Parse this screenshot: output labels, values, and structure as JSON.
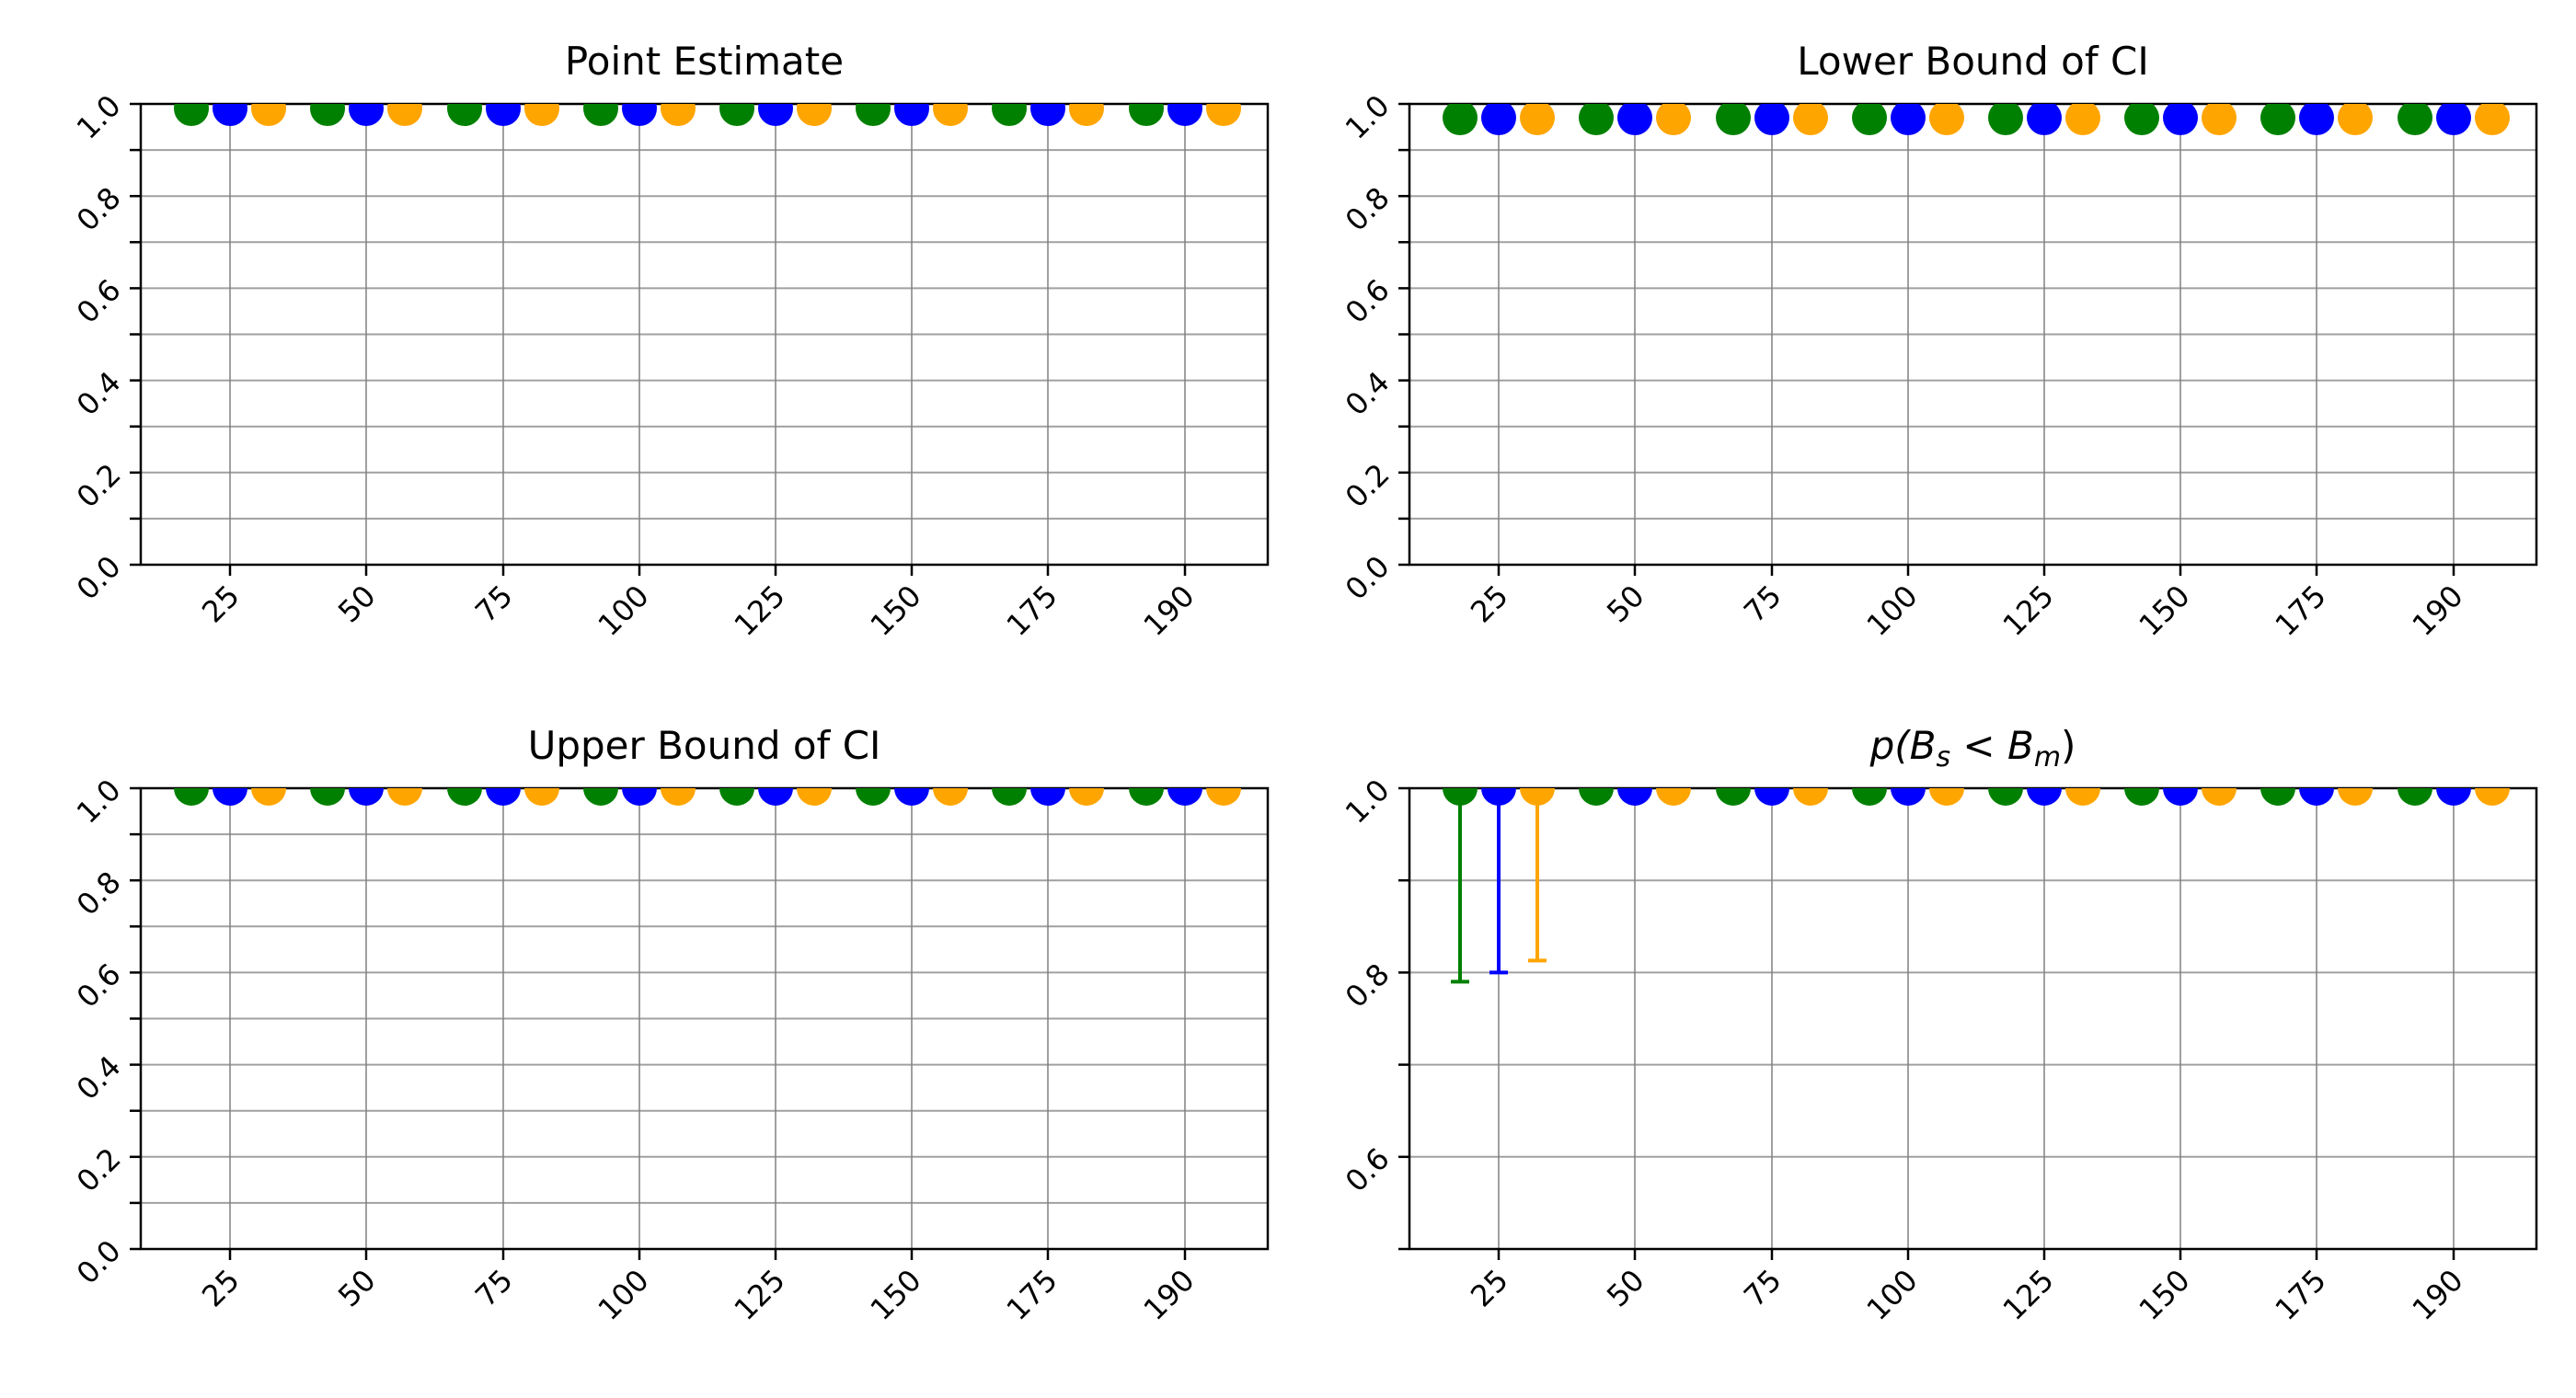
{
  "figure": {
    "colors": [
      "#008000",
      "#0000ff",
      "#ffa500"
    ],
    "grid": true
  },
  "chart_data": [
    {
      "type": "scatter",
      "title": "Point Estimate",
      "categories": [
        "25",
        "50",
        "75",
        "100",
        "125",
        "150",
        "175",
        "190"
      ],
      "ylim": [
        0,
        1
      ],
      "yticks": [
        "0.0",
        "0.2",
        "0.4",
        "0.6",
        "0.8",
        "1.0"
      ],
      "series": [
        {
          "color": "#008000",
          "values": [
            0.99,
            0.99,
            0.99,
            0.99,
            0.99,
            0.99,
            0.99,
            0.99
          ]
        },
        {
          "color": "#0000ff",
          "values": [
            0.99,
            0.99,
            0.99,
            0.99,
            0.99,
            0.99,
            0.99,
            0.99
          ]
        },
        {
          "color": "#ffa500",
          "values": [
            0.99,
            0.99,
            0.99,
            0.99,
            0.99,
            0.99,
            0.99,
            0.99
          ]
        }
      ]
    },
    {
      "type": "scatter",
      "title": "Lower Bound of CI",
      "categories": [
        "25",
        "50",
        "75",
        "100",
        "125",
        "150",
        "175",
        "190"
      ],
      "ylim": [
        0,
        1
      ],
      "yticks": [
        "0.0",
        "0.2",
        "0.4",
        "0.6",
        "0.8",
        "1.0"
      ],
      "series": [
        {
          "color": "#008000",
          "values": [
            0.97,
            0.97,
            0.97,
            0.97,
            0.97,
            0.97,
            0.97,
            0.97
          ]
        },
        {
          "color": "#0000ff",
          "values": [
            0.97,
            0.97,
            0.97,
            0.97,
            0.97,
            0.97,
            0.97,
            0.97
          ]
        },
        {
          "color": "#ffa500",
          "values": [
            0.97,
            0.97,
            0.97,
            0.97,
            0.97,
            0.97,
            0.97,
            0.97
          ]
        }
      ]
    },
    {
      "type": "scatter",
      "title": "Upper Bound of CI",
      "categories": [
        "25",
        "50",
        "75",
        "100",
        "125",
        "150",
        "175",
        "190"
      ],
      "ylim": [
        0,
        1
      ],
      "yticks": [
        "0.0",
        "0.2",
        "0.4",
        "0.6",
        "0.8",
        "1.0"
      ],
      "series": [
        {
          "color": "#008000",
          "values": [
            1.0,
            1.0,
            1.0,
            1.0,
            1.0,
            1.0,
            1.0,
            1.0
          ]
        },
        {
          "color": "#0000ff",
          "values": [
            1.0,
            1.0,
            1.0,
            1.0,
            1.0,
            1.0,
            1.0,
            1.0
          ]
        },
        {
          "color": "#ffa500",
          "values": [
            1.0,
            1.0,
            1.0,
            1.0,
            1.0,
            1.0,
            1.0,
            1.0
          ]
        }
      ]
    },
    {
      "type": "scatter",
      "title": "p(B_s < B_m)",
      "title_parts": {
        "p": "p(",
        "B1": "B",
        "s": "s",
        "lt": " < ",
        "B2": "B",
        "m": "m",
        "close": ")"
      },
      "categories": [
        "25",
        "50",
        "75",
        "100",
        "125",
        "150",
        "175",
        "190"
      ],
      "ylim": [
        0.5,
        1
      ],
      "yticks": [
        "0.6",
        "0.8",
        "1.0"
      ],
      "series": [
        {
          "color": "#008000",
          "values": [
            1.0,
            1.0,
            1.0,
            1.0,
            1.0,
            1.0,
            1.0,
            1.0
          ],
          "err_low": [
            0.79,
            1.0,
            1.0,
            1.0,
            1.0,
            1.0,
            1.0,
            1.0
          ]
        },
        {
          "color": "#0000ff",
          "values": [
            1.0,
            1.0,
            1.0,
            1.0,
            1.0,
            1.0,
            1.0,
            1.0
          ],
          "err_low": [
            0.8,
            1.0,
            1.0,
            1.0,
            1.0,
            1.0,
            1.0,
            1.0
          ]
        },
        {
          "color": "#ffa500",
          "values": [
            1.0,
            1.0,
            1.0,
            1.0,
            1.0,
            1.0,
            1.0,
            1.0
          ],
          "err_low": [
            0.813,
            1.0,
            1.0,
            1.0,
            1.0,
            1.0,
            1.0,
            1.0
          ]
        }
      ]
    }
  ]
}
